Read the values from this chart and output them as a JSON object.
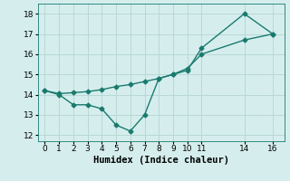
{
  "line1_x": [
    0,
    1,
    2,
    3,
    4,
    5,
    6,
    7,
    8,
    9,
    10,
    11,
    14,
    16
  ],
  "line1_y": [
    14.2,
    14.0,
    13.5,
    13.5,
    13.3,
    12.5,
    12.2,
    13.0,
    14.8,
    15.0,
    15.2,
    16.3,
    18.0,
    17.0
  ],
  "line2_x": [
    0,
    1,
    2,
    3,
    4,
    5,
    6,
    7,
    8,
    9,
    10,
    11,
    14,
    16
  ],
  "line2_y": [
    14.2,
    14.05,
    14.1,
    14.15,
    14.25,
    14.4,
    14.5,
    14.65,
    14.8,
    15.0,
    15.3,
    16.0,
    16.7,
    17.0
  ],
  "line_color": "#1a7a6e",
  "bg_color": "#d5eeed",
  "grid_color": "#b8d8d5",
  "xlabel": "Humidex (Indice chaleur)",
  "ylim": [
    11.7,
    18.5
  ],
  "xlim": [
    -0.5,
    16.8
  ],
  "yticks": [
    12,
    13,
    14,
    15,
    16,
    17,
    18
  ],
  "xticks": [
    0,
    1,
    2,
    3,
    4,
    5,
    6,
    7,
    8,
    9,
    10,
    11,
    14,
    16
  ],
  "marker": "D",
  "markersize": 2.5,
  "linewidth": 1.0,
  "xlabel_fontsize": 7.5,
  "tick_fontsize": 6.5
}
